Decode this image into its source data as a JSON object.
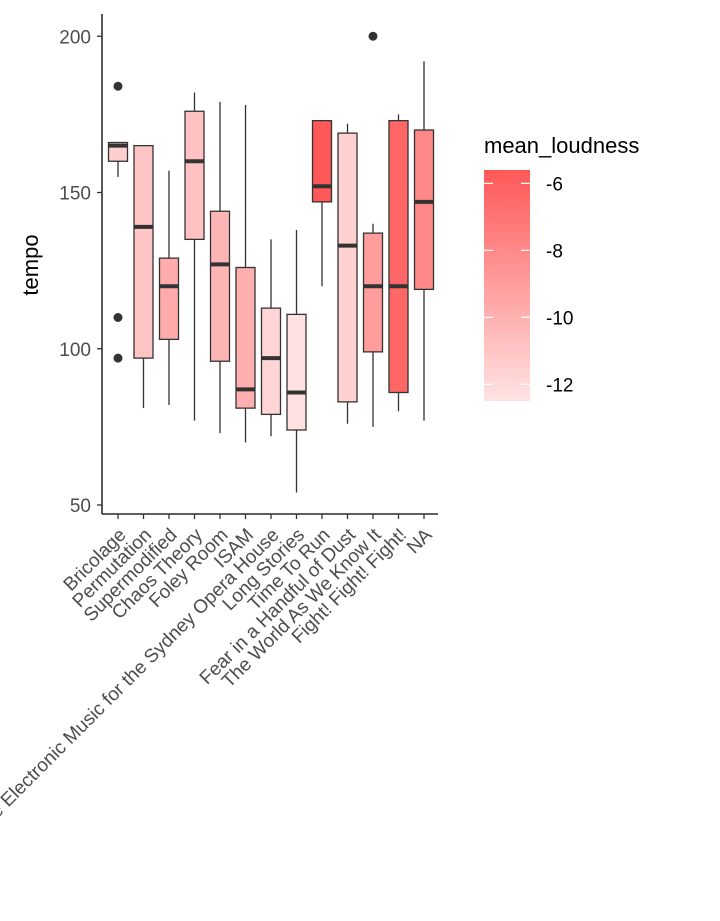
{
  "chart_data": {
    "type": "boxplot",
    "title": "",
    "xlabel": "",
    "ylabel": "tempo",
    "ylim": [
      47,
      206
    ],
    "yticks": [
      50,
      100,
      150,
      200
    ],
    "grid": false,
    "legend": {
      "title": "mean_loudness",
      "type": "colorbar",
      "position": "right",
      "range": [
        -12.5,
        -5.6
      ],
      "breaks": [
        -6,
        -8,
        -10,
        -12
      ],
      "low_color": "#ffe3e3",
      "high_color": "#ff5858"
    },
    "categories": [
      "Bricolage",
      "Permutation",
      "Supermodified",
      "Chaos Theory",
      "Foley Room",
      "ISAM",
      "Live Electronic Music for the Sydney Opera House",
      "Long Stories",
      "Time To Run",
      "Fear in a Handful of Dust",
      "The World As We Know It",
      "Fight! Fight! Fight!",
      "NA"
    ],
    "boxes": [
      {
        "min": 155,
        "q1": 160,
        "median": 165,
        "q3": 166,
        "max": 166,
        "outliers": [
          184,
          110,
          97
        ],
        "mean_loudness": -11.5
      },
      {
        "min": 81,
        "q1": 97,
        "median": 139,
        "q3": 165,
        "max": 165,
        "outliers": [],
        "mean_loudness": -11.0
      },
      {
        "min": 82,
        "q1": 103,
        "median": 120,
        "q3": 129,
        "max": 157,
        "outliers": [],
        "mean_loudness": -9.7
      },
      {
        "min": 77,
        "q1": 135,
        "median": 160,
        "q3": 176,
        "max": 182,
        "outliers": [],
        "mean_loudness": -10.8
      },
      {
        "min": 73,
        "q1": 96,
        "median": 127,
        "q3": 144,
        "max": 179,
        "outliers": [],
        "mean_loudness": -10.2
      },
      {
        "min": 70,
        "q1": 81,
        "median": 87,
        "q3": 126,
        "max": 178,
        "outliers": [],
        "mean_loudness": -9.9
      },
      {
        "min": 72,
        "q1": 79,
        "median": 97,
        "q3": 113,
        "max": 135,
        "outliers": [],
        "mean_loudness": -11.8
      },
      {
        "min": 54,
        "q1": 74,
        "median": 86,
        "q3": 111,
        "max": 138,
        "outliers": [],
        "mean_loudness": -12.4
      },
      {
        "min": 120,
        "q1": 147,
        "median": 152,
        "q3": 173,
        "max": 173,
        "outliers": [],
        "mean_loudness": -5.6
      },
      {
        "min": 76,
        "q1": 83,
        "median": 133,
        "q3": 169,
        "max": 172,
        "outliers": [],
        "mean_loudness": -11.6
      },
      {
        "min": 75,
        "q1": 99,
        "median": 120,
        "q3": 137,
        "max": 140,
        "outliers": [
          200
        ],
        "mean_loudness": -9.0
      },
      {
        "min": 80,
        "q1": 86,
        "median": 120,
        "q3": 173,
        "max": 175,
        "outliers": [],
        "mean_loudness": -6.3
      },
      {
        "min": 77,
        "q1": 119,
        "median": 147,
        "q3": 170,
        "max": 192,
        "outliers": [],
        "mean_loudness": -8.0
      }
    ]
  }
}
